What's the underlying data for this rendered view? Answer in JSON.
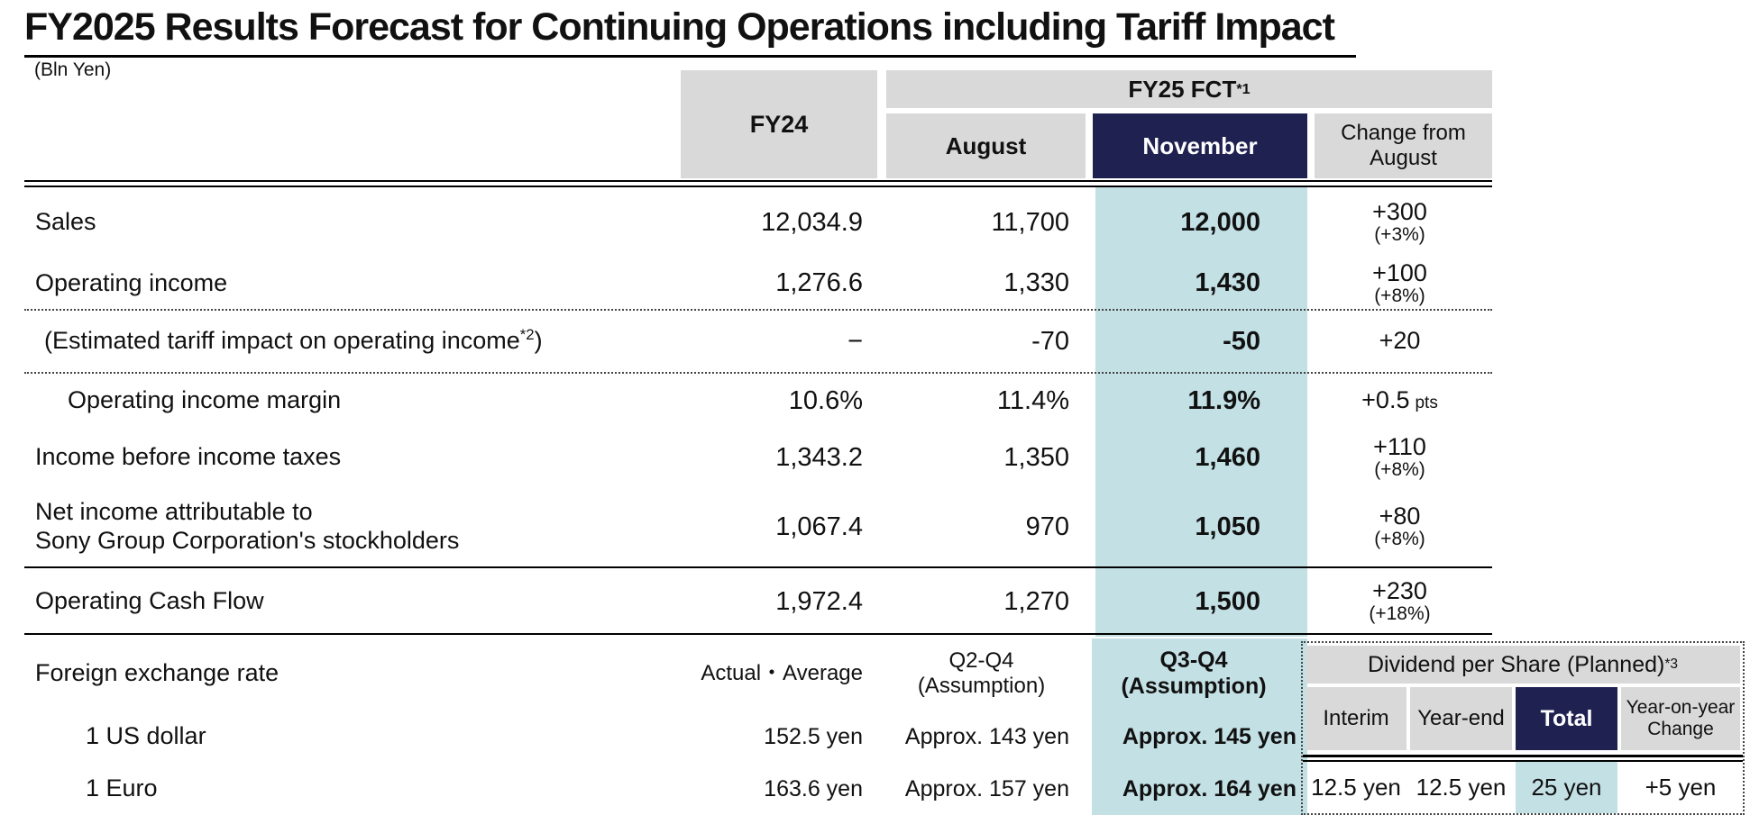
{
  "title": "FY2025 Results Forecast for Continuing Operations including Tariff Impact",
  "unit_note": "(Bln Yen)",
  "colors": {
    "accent_navy": "#1f2150",
    "highlight_teal": "#c3e0e5",
    "header_gray": "#d9d9d9"
  },
  "header": {
    "fy24": "FY24",
    "fy25_group": "FY25 FCT",
    "fy25_group_sup": "*1",
    "august": "August",
    "november": "November",
    "change_line1": "Change from",
    "change_line2": "August"
  },
  "rows": [
    {
      "label": "Sales",
      "fy24": "12,034.9",
      "august": "11,700",
      "november": "12,000",
      "change": "+300",
      "change_pct": "(+3%)"
    },
    {
      "label": "Operating income",
      "fy24": "1,276.6",
      "august": "1,330",
      "november": "1,430",
      "change": "+100",
      "change_pct": "(+8%)"
    },
    {
      "label_pre": "(Estimated tariff impact on operating income",
      "label_sup": "*2",
      "label_post": ")",
      "fy24": "−",
      "august": "-70",
      "november": "-50",
      "change": "+20"
    },
    {
      "label": "Operating income margin",
      "fy24": "10.6%",
      "august": "11.4%",
      "november": "11.9%",
      "change": "+0.5",
      "change_unit": "pts"
    },
    {
      "label": "Income before income taxes",
      "fy24": "1,343.2",
      "august": "1,350",
      "november": "1,460",
      "change": "+110",
      "change_pct": "(+8%)"
    },
    {
      "label_line1": "Net income attributable to",
      "label_line2": "Sony Group Corporation's stockholders",
      "fy24": "1,067.4",
      "august": "970",
      "november": "1,050",
      "change": "+80",
      "change_pct": "(+8%)"
    },
    {
      "label": "Operating Cash Flow",
      "fy24": "1,972.4",
      "august": "1,270",
      "november": "1,500",
      "change": "+230",
      "change_pct": "(+18%)"
    }
  ],
  "fx": {
    "label": "Foreign exchange rate",
    "fy24_header": "Actual・Average",
    "august_header_line1": "Q2-Q4",
    "august_header_line2": "(Assumption)",
    "november_header_line1": "Q3-Q4",
    "november_header_line2": "(Assumption)",
    "rows": [
      {
        "label": "1 US dollar",
        "fy24": "152.5 yen",
        "august": "Approx. 143 yen",
        "november": "Approx. 145 yen"
      },
      {
        "label": "1 Euro",
        "fy24": "163.6 yen",
        "august": "Approx. 157 yen",
        "november": "Approx. 164 yen"
      }
    ]
  },
  "dividend": {
    "title": "Dividend per Share (Planned)",
    "title_sup": "*3",
    "col_interim": "Interim",
    "col_yearend": "Year-end",
    "col_total": "Total",
    "col_yoy_line1": "Year-on-year",
    "col_yoy_line2": "Change",
    "val_interim": "12.5 yen",
    "val_yearend": "12.5 yen",
    "val_total": "25 yen",
    "val_yoy": "+5 yen"
  }
}
